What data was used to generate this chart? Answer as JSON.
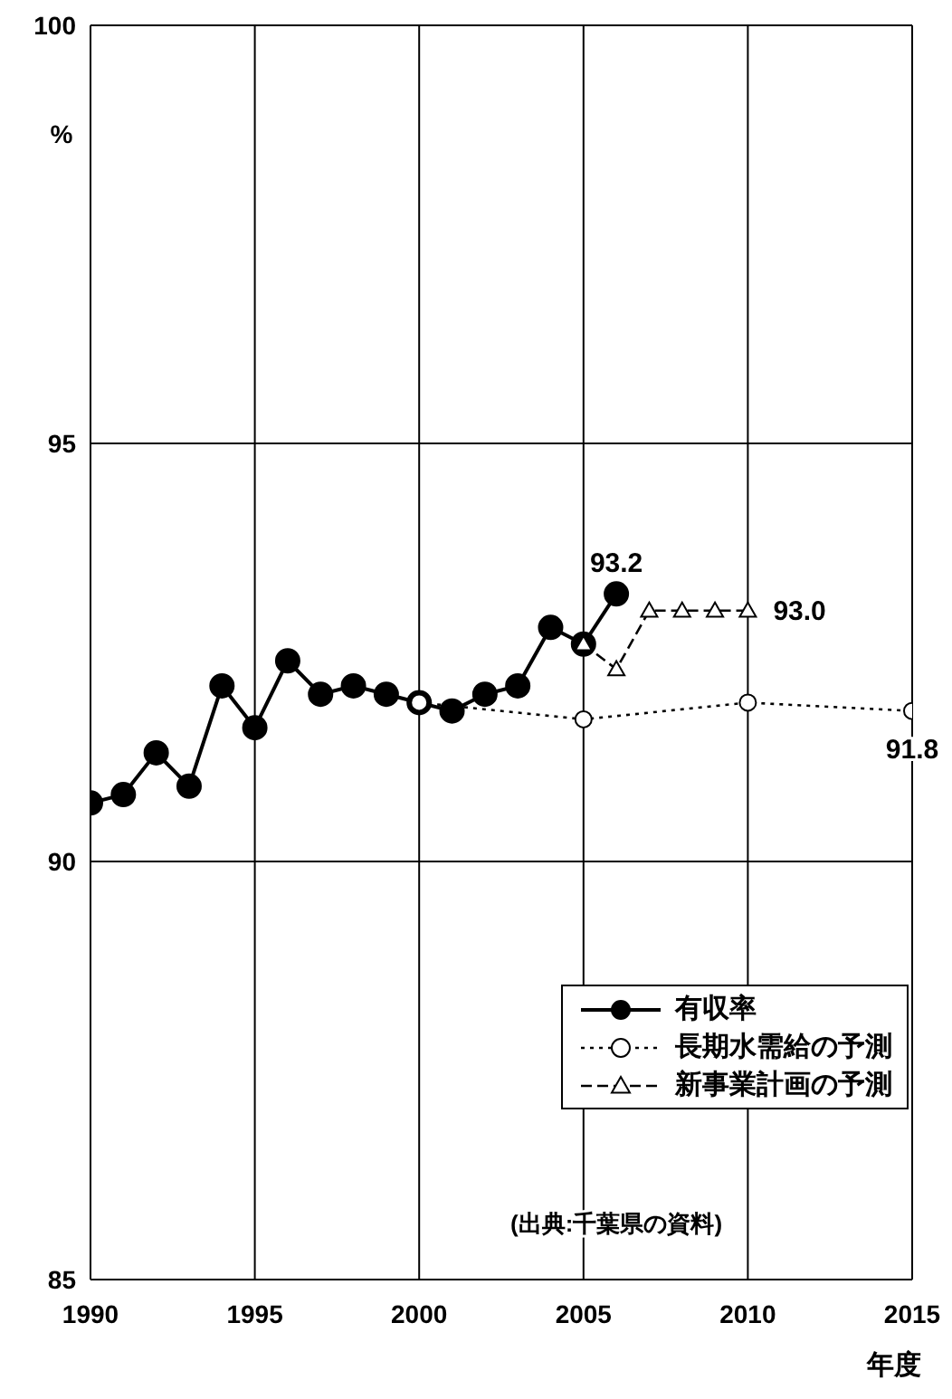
{
  "chart_data": {
    "type": "line",
    "ylabel": "%",
    "xlabel": "年度",
    "xlim": [
      1990,
      2015
    ],
    "xticks": [
      1990,
      1995,
      2000,
      2005,
      2010,
      2015
    ],
    "ylim": [
      85,
      100
    ],
    "yticks": [
      85,
      90,
      95,
      100
    ],
    "grid": true,
    "legend": "bottom right",
    "annotations": [
      "(出典:千葉県の資料)"
    ],
    "series": [
      {
        "name": "有収率",
        "color": "#000000",
        "marker": "circle",
        "line_style": "solid",
        "x": [
          1990,
          1991,
          1992,
          1993,
          1994,
          1995,
          1996,
          1997,
          1998,
          1999,
          2000,
          2001,
          2002,
          2003,
          2004,
          2005,
          2006
        ],
        "values": [
          90.7,
          90.8,
          91.3,
          90.9,
          92.1,
          91.6,
          92.4,
          92.0,
          92.1,
          92.0,
          91.9,
          91.8,
          92.0,
          92.1,
          92.8,
          92.6,
          93.2
        ],
        "value_labels": [
          null,
          null,
          null,
          null,
          null,
          null,
          null,
          null,
          null,
          null,
          null,
          null,
          null,
          null,
          null,
          null,
          "93.2"
        ]
      },
      {
        "name": "長期水需給の予測",
        "color": "#000000",
        "marker": "circle",
        "line_style": "dotted",
        "x": [
          2000,
          2005,
          2010,
          2015
        ],
        "values": [
          91.9,
          91.7,
          91.9,
          91.8
        ],
        "value_labels": [
          null,
          null,
          null,
          "91.8"
        ]
      },
      {
        "name": "新事業計画の予測",
        "color": "#000000",
        "marker": "triangle",
        "line_style": "dashed",
        "x": [
          2005,
          2006,
          2007,
          2008,
          2009,
          2010
        ],
        "values": [
          92.6,
          92.3,
          93.0,
          93.0,
          93.0,
          93.0
        ],
        "value_labels": [
          null,
          null,
          null,
          null,
          null,
          "93.0"
        ]
      }
    ]
  }
}
